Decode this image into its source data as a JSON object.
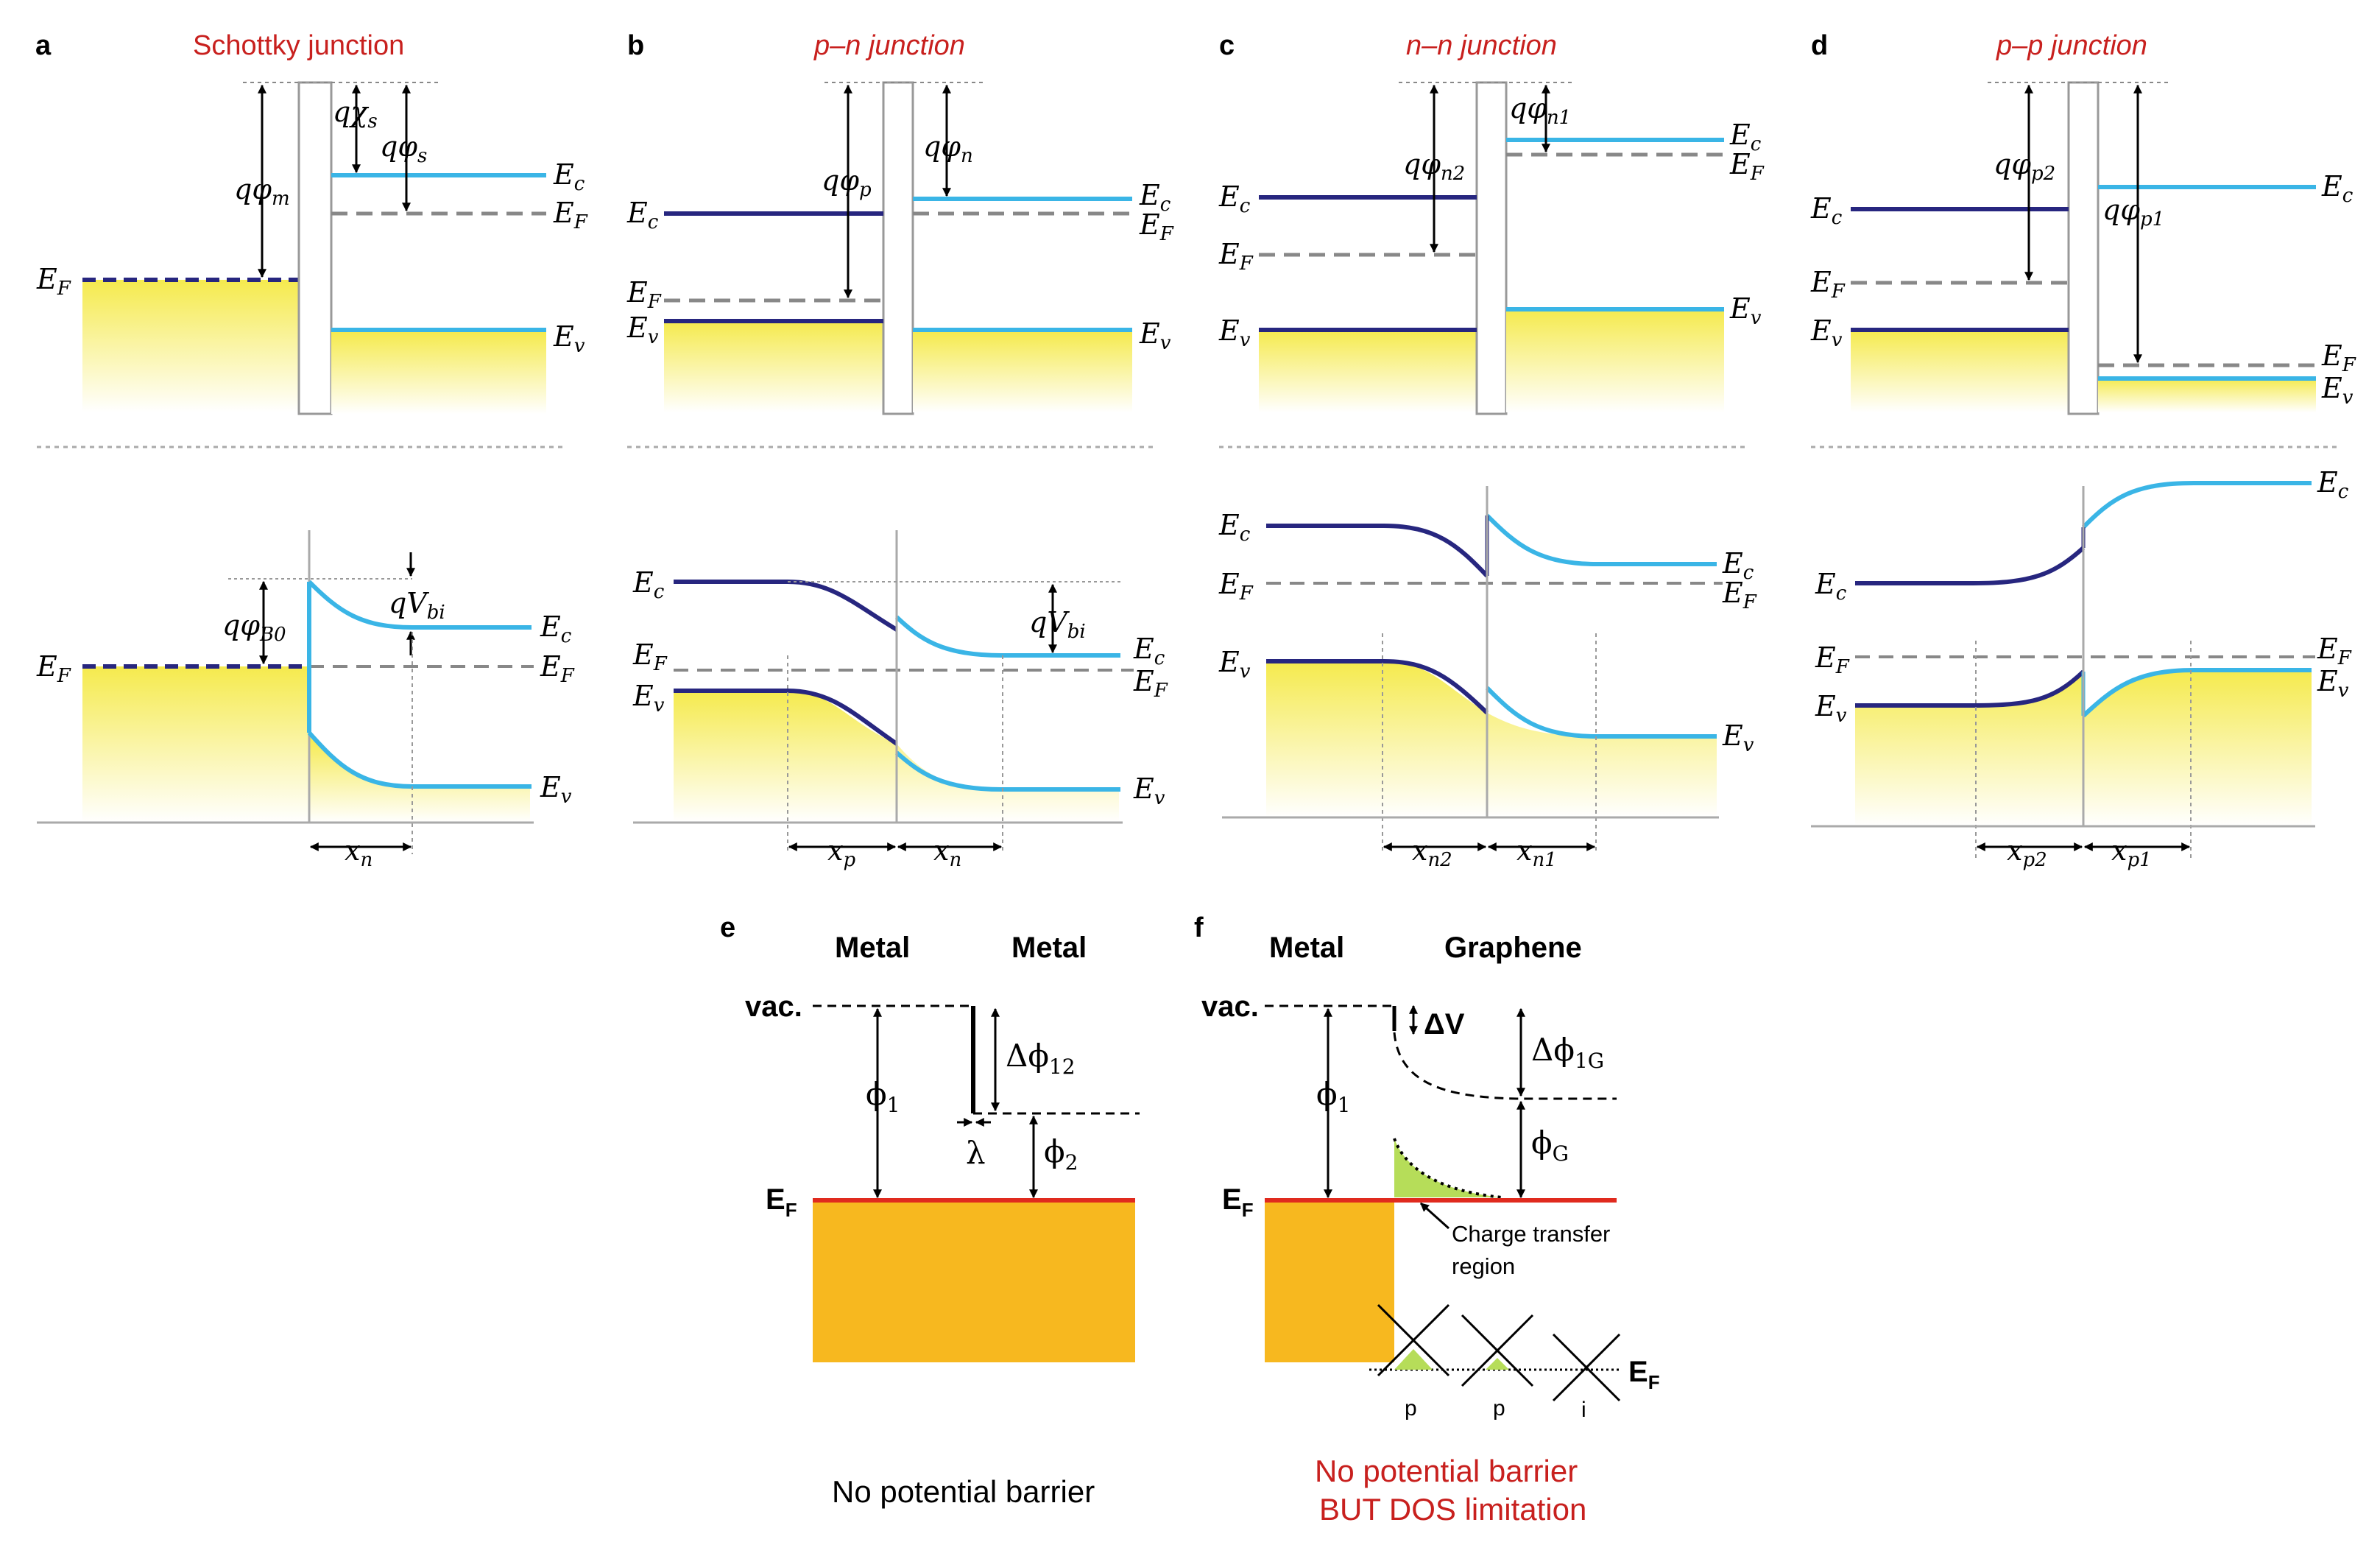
{
  "panels": {
    "a": {
      "label": "a",
      "title": "Schottky junction"
    },
    "b": {
      "label": "b",
      "title": "p–n junction"
    },
    "c": {
      "label": "c",
      "title": "n–n junction"
    },
    "d": {
      "label": "d",
      "title": "p–p junction"
    },
    "e": {
      "label": "e",
      "left_material": "Metal",
      "right_material": "Metal",
      "caption": "No potential barrier"
    },
    "f": {
      "label": "f",
      "left_material": "Metal",
      "right_material": "Graphene",
      "annotation": "Charge transfer",
      "annotation2": "region",
      "caption_line1": "No potential barrier",
      "caption_line2": "BUT DOS limitation",
      "cone_labels": [
        "p",
        "p",
        "i"
      ]
    }
  },
  "band_labels": {
    "Ec": "E",
    "Ec_sub": "c",
    "Ev": "E",
    "Ev_sub": "v",
    "EF": "E",
    "EF_sub": "F"
  },
  "symbols": {
    "q_phi_m": "qφ",
    "m": "m",
    "q_chi_s": "qχ",
    "s": "s",
    "q_phi_s": "qφ",
    "q_phi_p": "qφ",
    "p": "p",
    "q_phi_n": "qφ",
    "n": "n",
    "q_phi_n1": "qφ",
    "n1": "n1",
    "q_phi_n2": "qφ",
    "n2": "n2",
    "q_phi_p1": "qφ",
    "p1": "p1",
    "q_phi_p2": "qφ",
    "p2": "p2",
    "q_phi_B0": "qφ",
    "B0": "B0",
    "qV": "qV",
    "bi": "bi",
    "x": "x",
    "vac": "vac.",
    "phi1": "ϕ",
    "sub1": "1",
    "phi2": "ϕ",
    "sub2": "2",
    "dphi12": "Δϕ",
    "sub12": "12",
    "lambda": "λ",
    "dV": "ΔV",
    "dphi1G": "Δϕ",
    "sub1G": "1G",
    "phiG": "ϕ",
    "subG": "G",
    "EF_bold": "E",
    "F": "F"
  },
  "colors": {
    "dark_band": "#27267f",
    "light_band": "#3ab5e6",
    "fermi_red": "#e02a1e",
    "metal_orange": "#f7b81f",
    "charge_green": "#b6dd59",
    "title_red": "#c8201e",
    "yellow_fill": "#f5ea4d"
  }
}
